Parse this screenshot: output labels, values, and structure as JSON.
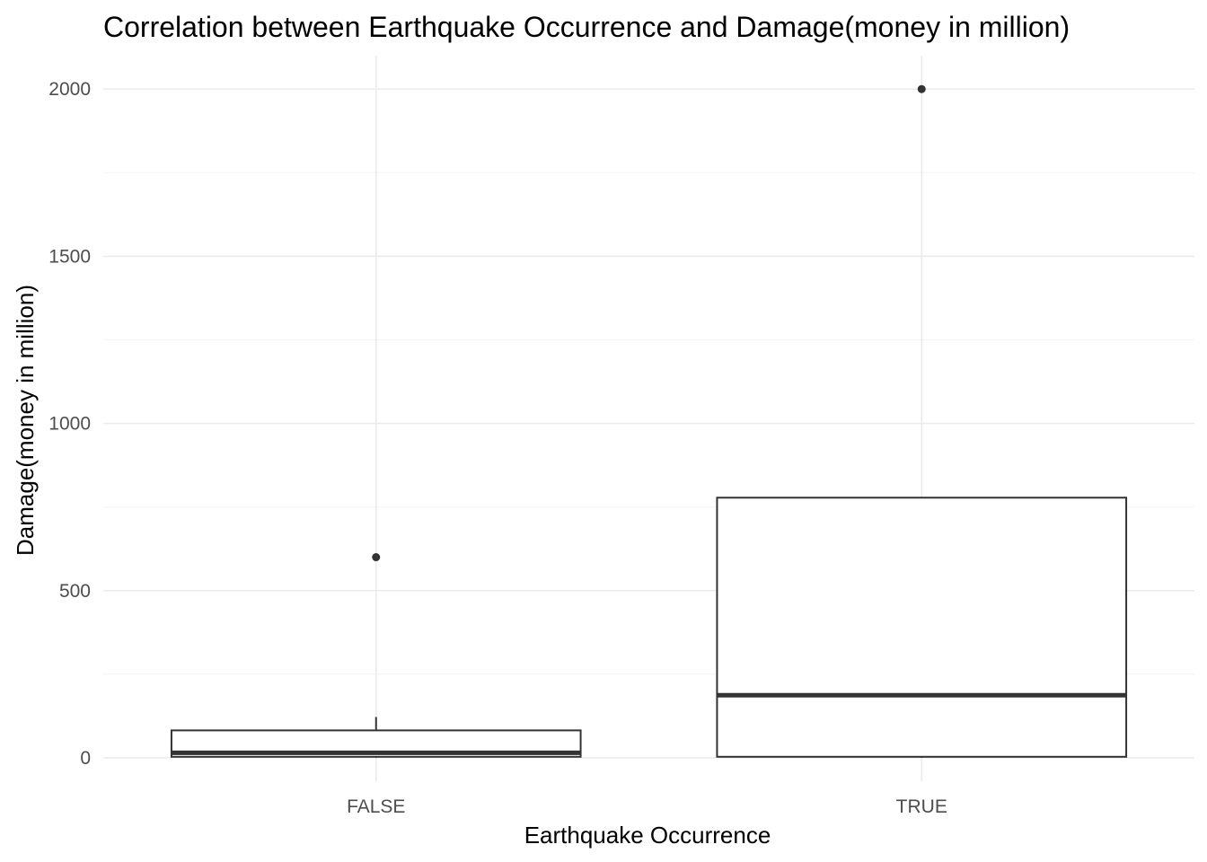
{
  "chart_data": {
    "type": "box",
    "title": "Correlation between Earthquake Occurrence and Damage(money in million)",
    "xlabel": "Earthquake Occurrence",
    "ylabel": "Damage(money in million)",
    "categories": [
      "FALSE",
      "TRUE"
    ],
    "ylim": [
      -70,
      2100
    ],
    "yticks": [
      0,
      500,
      1000,
      1500,
      2000
    ],
    "ytick_labels": [
      "0",
      "500",
      "1000",
      "1500",
      "2000"
    ],
    "minor_yticks": [
      250,
      750,
      1250,
      1750
    ],
    "grid": true,
    "legend": "none",
    "boxes": [
      {
        "category": "FALSE",
        "min": 0,
        "q1": 3,
        "median": 15,
        "q3": 82,
        "max": 122,
        "outliers": [
          600
        ]
      },
      {
        "category": "TRUE",
        "min": 0,
        "q1": 3,
        "median": 187,
        "q3": 778,
        "max": 778,
        "outliers": [
          2000
        ]
      }
    ],
    "colors": {
      "box_line": "#333333",
      "box_fill": "#ffffff",
      "grid_major": "#ebebeb",
      "grid_minor": "#f4f4f4",
      "tick_text": "#4d4d4d"
    }
  }
}
